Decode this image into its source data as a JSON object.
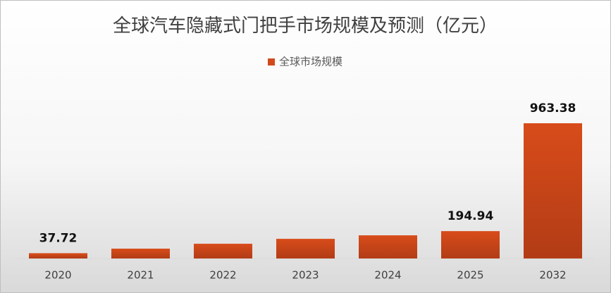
{
  "chart_data": {
    "type": "bar",
    "title": "全球汽车隐藏式门把手市场规模及预测（亿元）",
    "categories": [
      "2020",
      "2021",
      "2022",
      "2023",
      "2024",
      "2025",
      "2032"
    ],
    "series": [
      {
        "name": "全球市场规模",
        "color": "#d24a1c",
        "values": [
          37.72,
          70,
          105,
          140,
          165,
          194.94,
          963.38
        ],
        "value_labels": [
          "37.72",
          null,
          null,
          null,
          null,
          "194.94",
          "963.38"
        ]
      }
    ],
    "legend": "top"
  }
}
